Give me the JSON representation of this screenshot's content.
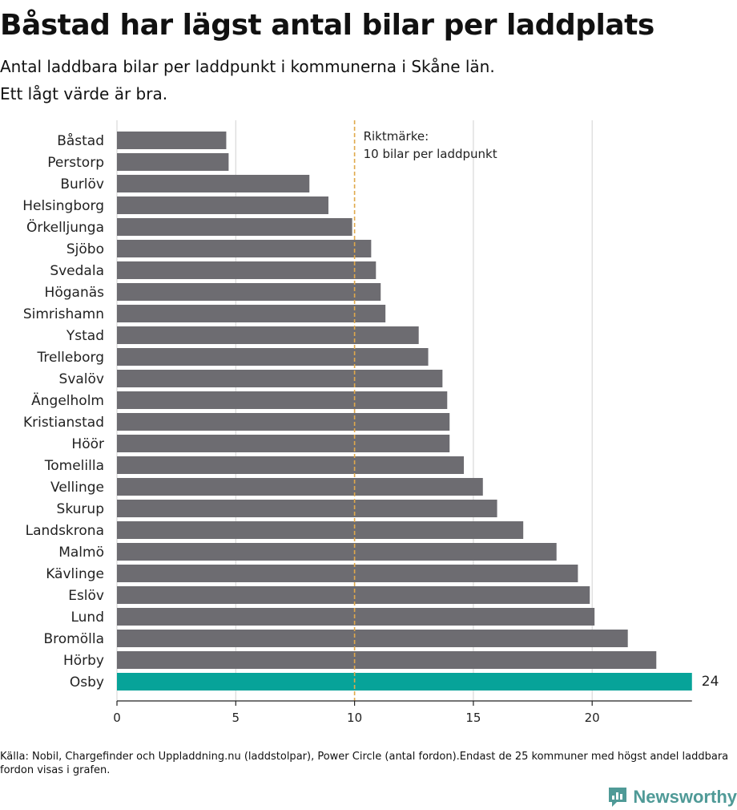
{
  "title": "Båstad har lägst antal bilar per laddplats",
  "subtitle_line1": "Antal laddbara bilar per laddpunkt i kommunerna i Skåne län.",
  "subtitle_line2": "Ett lågt värde är bra.",
  "source": "Källa: Nobil, Chargefinder och Uppladdning.nu (laddstolpar), Power Circle (antal fordon).Endast de 25 kommuner med högst andel laddbara fordon visas i grafen.",
  "logo_text": "Newsworthy",
  "colors": {
    "bar": "#6d6c71",
    "highlight": "#07a399",
    "reference": "#e0a94b",
    "grid": "#d9d9d9"
  },
  "chart_data": {
    "type": "bar",
    "orientation": "horizontal",
    "categories": [
      "Båstad",
      "Perstorp",
      "Burlöv",
      "Helsingborg",
      "Örkelljunga",
      "Sjöbo",
      "Svedala",
      "Höganäs",
      "Simrishamn",
      "Ystad",
      "Trelleborg",
      "Svalöv",
      "Ängelholm",
      "Kristianstad",
      "Höör",
      "Tomelilla",
      "Vellinge",
      "Skurup",
      "Landskrona",
      "Malmö",
      "Kävlinge",
      "Eslöv",
      "Lund",
      "Bromölla",
      "Hörby",
      "Osby"
    ],
    "values": [
      4.6,
      4.7,
      8.1,
      8.9,
      9.9,
      10.7,
      10.9,
      11.1,
      11.3,
      12.7,
      13.1,
      13.7,
      13.9,
      14.0,
      14.0,
      14.6,
      15.4,
      16.0,
      17.1,
      18.5,
      19.4,
      19.9,
      20.1,
      21.5,
      22.7,
      24.2
    ],
    "highlight": "Osby",
    "highlight_label": "24",
    "xlim": [
      0,
      24.2
    ],
    "xticks": [
      0,
      5,
      10,
      15,
      20
    ],
    "reference_value": 10,
    "reference_label_line1": "Riktmärke:",
    "reference_label_line2": "10 bilar per laddpunkt",
    "grid": true
  }
}
